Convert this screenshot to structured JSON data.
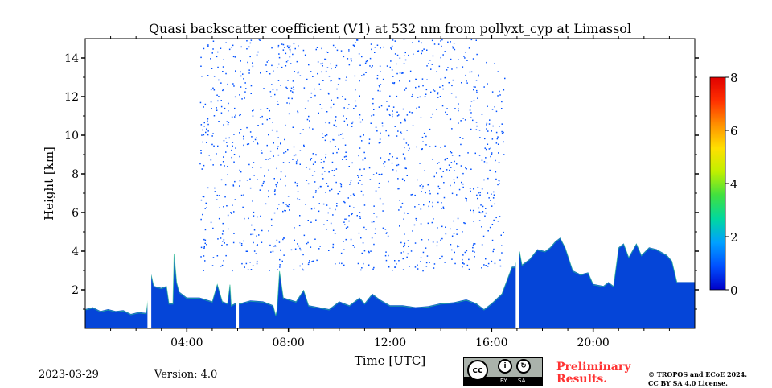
{
  "title": "Quasi backscatter coefficient (V1) at 532 nm from pollyxt_cyp at Limassol",
  "footer": {
    "date": "2023-03-29",
    "version": "Version: 4.0",
    "preliminary_line1": "Preliminary",
    "preliminary_line2": "Results.",
    "copyright_line1": "© TROPOS and ECoE 2024.",
    "copyright_line2": "CC BY SA 4.0 License.",
    "license_badge": {
      "cc": "cc",
      "by": "BY",
      "sa": "SA"
    }
  },
  "chart_data": {
    "type": "heatmap",
    "title": "Quasi backscatter coefficient (V1) at 532 nm from pollyxt_cyp at Limassol",
    "xlabel": "Time [UTC]",
    "ylabel": "Height [km]",
    "xlim": [
      0,
      24
    ],
    "ylim": [
      0,
      15
    ],
    "xticks": [
      {
        "v": 4,
        "label": "04:00"
      },
      {
        "v": 8,
        "label": "08:00"
      },
      {
        "v": 12,
        "label": "12:00"
      },
      {
        "v": 16,
        "label": "16:00"
      },
      {
        "v": 20,
        "label": "20:00"
      }
    ],
    "yticks": [
      {
        "v": 2,
        "label": "2"
      },
      {
        "v": 4,
        "label": "4"
      },
      {
        "v": 6,
        "label": "6"
      },
      {
        "v": 8,
        "label": "8"
      },
      {
        "v": 10,
        "label": "10"
      },
      {
        "v": 12,
        "label": "12"
      },
      {
        "v": 14,
        "label": "14"
      }
    ],
    "colorbar": {
      "range": [
        0,
        8
      ],
      "ticks": [
        {
          "v": 0,
          "label": "0"
        },
        {
          "v": 2,
          "label": "2"
        },
        {
          "v": 4,
          "label": "4"
        },
        {
          "v": 6,
          "label": "6"
        },
        {
          "v": 8,
          "label": "8"
        }
      ],
      "colors": [
        "#0000c8",
        "#0050ff",
        "#00a0ff",
        "#00d8a0",
        "#40e040",
        "#c0f000",
        "#ffe000",
        "#ff9000",
        "#ff3000",
        "#e00000"
      ]
    },
    "aerosol_layer_top_km": [
      [
        0,
        1.0
      ],
      [
        0.3,
        1.1
      ],
      [
        0.6,
        0.9
      ],
      [
        0.9,
        1.0
      ],
      [
        1.2,
        0.9
      ],
      [
        1.5,
        0.95
      ],
      [
        1.8,
        0.75
      ],
      [
        2.1,
        0.85
      ],
      [
        2.4,
        0.8
      ],
      [
        2.6,
        2.8
      ],
      [
        2.7,
        2.2
      ],
      [
        3.0,
        2.1
      ],
      [
        3.2,
        2.2
      ],
      [
        3.3,
        1.3
      ],
      [
        3.45,
        1.3
      ],
      [
        3.5,
        3.9
      ],
      [
        3.6,
        2.4
      ],
      [
        3.7,
        1.9
      ],
      [
        4.0,
        1.6
      ],
      [
        4.5,
        1.6
      ],
      [
        5.0,
        1.4
      ],
      [
        5.2,
        2.3
      ],
      [
        5.4,
        1.4
      ],
      [
        5.6,
        1.3
      ],
      [
        5.7,
        2.3
      ],
      [
        5.75,
        1.2
      ],
      [
        5.9,
        1.3
      ],
      [
        6.1,
        1.3
      ],
      [
        6.5,
        1.45
      ],
      [
        7.0,
        1.4
      ],
      [
        7.4,
        1.2
      ],
      [
        7.5,
        0.7
      ],
      [
        7.55,
        1.0
      ],
      [
        7.65,
        3.0
      ],
      [
        7.8,
        1.6
      ],
      [
        8.3,
        1.4
      ],
      [
        8.6,
        2.0
      ],
      [
        8.8,
        1.2
      ],
      [
        9.2,
        1.1
      ],
      [
        9.6,
        1.0
      ],
      [
        10.0,
        1.4
      ],
      [
        10.4,
        1.2
      ],
      [
        10.8,
        1.6
      ],
      [
        11.0,
        1.3
      ],
      [
        11.3,
        1.8
      ],
      [
        11.6,
        1.5
      ],
      [
        12.0,
        1.2
      ],
      [
        12.5,
        1.2
      ],
      [
        13.0,
        1.1
      ],
      [
        13.5,
        1.15
      ],
      [
        14.0,
        1.3
      ],
      [
        14.5,
        1.35
      ],
      [
        15.0,
        1.5
      ],
      [
        15.4,
        1.3
      ],
      [
        15.7,
        1.0
      ],
      [
        16.0,
        1.3
      ],
      [
        16.4,
        1.8
      ],
      [
        16.8,
        3.2
      ],
      [
        16.9,
        3.2
      ],
      [
        17.1,
        4.0
      ],
      [
        17.2,
        3.3
      ],
      [
        17.5,
        3.6
      ],
      [
        17.8,
        4.1
      ],
      [
        18.1,
        4.0
      ],
      [
        18.3,
        4.2
      ],
      [
        18.5,
        4.5
      ],
      [
        18.7,
        4.7
      ],
      [
        18.9,
        4.2
      ],
      [
        19.2,
        3.0
      ],
      [
        19.5,
        2.8
      ],
      [
        19.8,
        2.9
      ],
      [
        20.0,
        2.3
      ],
      [
        20.4,
        2.2
      ],
      [
        20.6,
        2.4
      ],
      [
        20.8,
        2.2
      ],
      [
        21.0,
        4.2
      ],
      [
        21.2,
        4.4
      ],
      [
        21.4,
        3.7
      ],
      [
        21.7,
        4.4
      ],
      [
        21.9,
        3.8
      ],
      [
        22.2,
        4.2
      ],
      [
        22.5,
        4.1
      ],
      [
        22.9,
        3.8
      ],
      [
        23.1,
        3.5
      ],
      [
        23.3,
        2.4
      ],
      [
        24.0,
        2.4
      ]
    ],
    "data_gaps_hours": [
      [
        2.45,
        2.6
      ],
      [
        5.95,
        6.05
      ],
      [
        16.95,
        17.07
      ]
    ],
    "sparse_signal_region": {
      "time": [
        4.5,
        16.5
      ],
      "height": [
        3,
        15
      ]
    }
  }
}
